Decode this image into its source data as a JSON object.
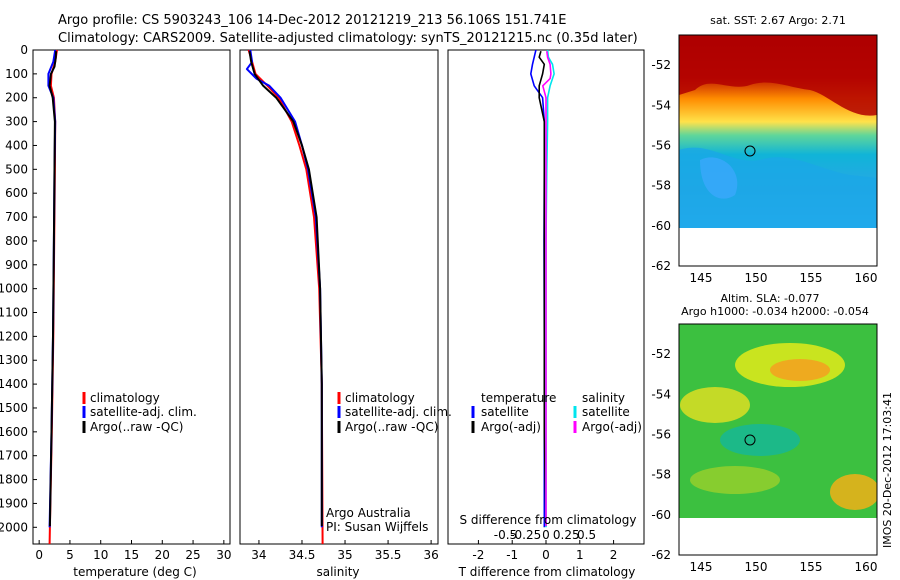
{
  "title": {
    "line1": "Argo profile: CS 5903243_106 14-Dec-2012 20121219_213 56.106S 151.741E",
    "line2": "Climatology: CARS2009. Satellite-adjusted climatology: synTS_20121215.nc (0.35d later)"
  },
  "colors": {
    "climatology": "#ff0000",
    "satellite": "#0000ff",
    "argo": "#000000",
    "satellite_salinity": "#00e5ee",
    "argo_salinity": "#ff00ff"
  },
  "chart_data": [
    {
      "type": "line",
      "panel": "temperature",
      "xlabel": "temperature (deg C)",
      "ylabel": "",
      "xlim": [
        -1,
        31
      ],
      "ylim": [
        2070,
        0
      ],
      "y_reversed": true,
      "xticks": [
        "0",
        "5",
        "10",
        "15",
        "20",
        "25",
        "30"
      ],
      "yticks": [
        "0",
        "100",
        "200",
        "300",
        "400",
        "500",
        "600",
        "700",
        "800",
        "900",
        "1000",
        "1100",
        "1200",
        "1300",
        "1400",
        "1500",
        "1600",
        "1700",
        "1800",
        "1900",
        "2000"
      ],
      "legend": [
        "climatology",
        "satellite-adj. clim.",
        "Argo(..raw -QC)"
      ],
      "series": [
        {
          "name": "climatology",
          "depth": [
            0,
            50,
            100,
            150,
            200,
            300,
            500,
            800,
            1200,
            1600,
            2000,
            2070
          ],
          "values": [
            2.9,
            2.6,
            2.0,
            1.9,
            2.4,
            2.6,
            2.55,
            2.45,
            2.3,
            2.05,
            1.75,
            1.7
          ]
        },
        {
          "name": "satellite-adj. clim.",
          "depth": [
            0,
            50,
            100,
            150,
            200,
            300,
            500,
            800,
            1200,
            1600,
            2000
          ],
          "values": [
            2.6,
            2.3,
            1.5,
            1.5,
            2.3,
            2.6,
            2.5,
            2.4,
            2.25,
            2.0,
            1.7
          ]
        },
        {
          "name": "Argo(..raw -QC)",
          "depth": [
            5,
            30,
            70,
            100,
            150,
            200,
            300,
            500,
            800,
            1200,
            1600,
            1995
          ],
          "values": [
            2.75,
            2.7,
            2.5,
            1.9,
            1.7,
            2.2,
            2.55,
            2.5,
            2.4,
            2.25,
            2.0,
            1.75
          ]
        }
      ]
    },
    {
      "type": "line",
      "panel": "salinity",
      "xlabel": "salinity",
      "ylabel": "",
      "xlim": [
        33.78,
        36.08
      ],
      "ylim": [
        2070,
        0
      ],
      "y_reversed": true,
      "xticks": [
        "34",
        "34.5",
        "35",
        "35.5",
        "36"
      ],
      "legend": [
        "climatology",
        "satellite-adj. clim.",
        "Argo(..raw -QC)"
      ],
      "annotations": [
        "Argo Australia",
        "PI: Susan Wijffels"
      ],
      "series": [
        {
          "name": "climatology",
          "depth": [
            0,
            50,
            100,
            150,
            200,
            300,
            400,
            500,
            700,
            1000,
            1400,
            2070
          ],
          "values": [
            33.88,
            33.92,
            33.96,
            34.1,
            34.23,
            34.38,
            34.47,
            34.55,
            34.64,
            34.7,
            34.73,
            34.74
          ]
        },
        {
          "name": "satellite-adj. clim.",
          "depth": [
            0,
            50,
            80,
            120,
            150,
            200,
            300,
            400,
            500,
            700,
            1000,
            1400,
            2000
          ],
          "values": [
            33.9,
            33.92,
            33.86,
            33.97,
            34.12,
            34.25,
            34.42,
            34.5,
            34.57,
            34.66,
            34.71,
            34.73,
            34.73
          ]
        },
        {
          "name": "Argo(..raw -QC)",
          "depth": [
            5,
            50,
            100,
            150,
            200,
            300,
            400,
            500,
            700,
            1000,
            1400,
            1995
          ],
          "values": [
            33.89,
            33.91,
            33.95,
            34.05,
            34.2,
            34.4,
            34.5,
            34.58,
            34.67,
            34.71,
            34.73,
            34.73
          ]
        }
      ]
    },
    {
      "type": "line",
      "panel": "difference",
      "xlabel": "T difference from climatology",
      "xlabel_top": "S difference from climatology",
      "xlim": [
        -2.9,
        2.9
      ],
      "ylim": [
        2070,
        0
      ],
      "y_reversed": true,
      "xticks": [
        "-2",
        "-1",
        "0",
        "1",
        "2"
      ],
      "xticks_top": [
        "-0.5",
        "-0.25",
        "0",
        "0.25",
        "0.5"
      ],
      "legend_title_t": "temperature",
      "legend_title_s": "salinity",
      "legend_t": [
        "satellite",
        "Argo(-adj)"
      ],
      "legend_s": [
        "satellite",
        "Argo(-adj)"
      ],
      "series": [
        {
          "name": "T satellite",
          "depth": [
            0,
            30,
            60,
            100,
            150,
            200,
            300,
            500,
            800,
            1200,
            1600,
            2000
          ],
          "values": [
            -0.3,
            -0.35,
            -0.4,
            -0.45,
            -0.35,
            -0.1,
            -0.05,
            -0.05,
            -0.06,
            -0.05,
            -0.05,
            -0.05
          ]
        },
        {
          "name": "T Argo(-adj)",
          "depth": [
            5,
            30,
            60,
            100,
            150,
            200,
            300,
            500,
            800,
            1200,
            1600,
            1995
          ],
          "values": [
            -0.15,
            -0.2,
            -0.05,
            -0.1,
            -0.2,
            -0.2,
            -0.05,
            -0.05,
            -0.05,
            -0.05,
            -0.05,
            0.0
          ]
        },
        {
          "name": "S satellite",
          "depth": [
            0,
            30,
            60,
            100,
            150,
            200,
            300,
            500,
            800,
            1200,
            1600,
            2000
          ],
          "values": [
            0.02,
            0.03,
            0.08,
            0.1,
            0.05,
            0.02,
            0.02,
            0.01,
            0.0,
            0.0,
            0.0,
            0.0
          ]
        },
        {
          "name": "S Argo(-adj)",
          "depth": [
            5,
            30,
            60,
            100,
            120,
            150,
            200,
            300,
            500,
            800,
            1200,
            1995
          ],
          "values": [
            0.01,
            0.02,
            0.05,
            0.06,
            0.05,
            -0.04,
            0.0,
            0.0,
            0.0,
            0.0,
            0.0,
            0.0
          ]
        }
      ]
    },
    {
      "type": "heatmap",
      "panel": "sst_map",
      "title": "sat. SST: 2.67 Argo: 2.71",
      "xlim": [
        143,
        161
      ],
      "ylim": [
        -62,
        -50.5
      ],
      "xticks": [
        "145",
        "150",
        "155",
        "160"
      ],
      "yticks": [
        "-52",
        "-54",
        "-56",
        "-58",
        "-60",
        "-62"
      ],
      "marker": {
        "lon": 151.741,
        "lat": -56.106
      }
    },
    {
      "type": "heatmap",
      "panel": "sla_map",
      "title": "Altim. SLA: -0.077",
      "subtitle": "Argo h1000: -0.034 h2000: -0.054",
      "xlim": [
        143,
        161
      ],
      "ylim": [
        -62,
        -50.5
      ],
      "xticks": [
        "145",
        "150",
        "155",
        "160"
      ],
      "yticks": [
        "-52",
        "-54",
        "-56",
        "-58",
        "-60",
        "-62"
      ],
      "marker": {
        "lon": 151.741,
        "lat": -56.106
      }
    }
  ],
  "footer": {
    "credit": "IMOS 20-Dec-2012 17:03:41"
  }
}
